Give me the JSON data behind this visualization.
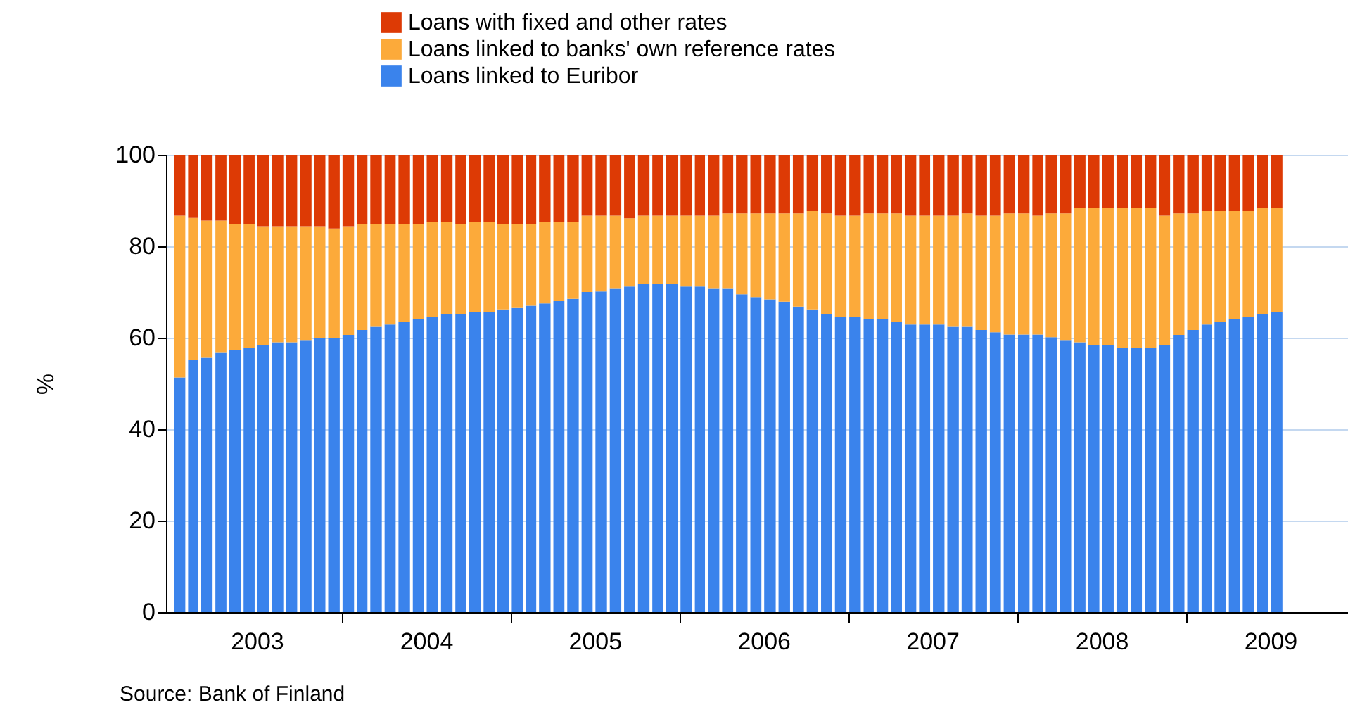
{
  "chart_data": {
    "type": "bar",
    "stacked": true,
    "ylabel": "%",
    "annotations": [
      "Source: Bank of Finland"
    ],
    "x": [
      "2003-01",
      "2003-02",
      "2003-03",
      "2003-04",
      "2003-05",
      "2003-06",
      "2003-07",
      "2003-08",
      "2003-09",
      "2003-10",
      "2003-11",
      "2003-12",
      "2004-01",
      "2004-02",
      "2004-03",
      "2004-04",
      "2004-05",
      "2004-06",
      "2004-07",
      "2004-08",
      "2004-09",
      "2004-10",
      "2004-11",
      "2004-12",
      "2005-01",
      "2005-02",
      "2005-03",
      "2005-04",
      "2005-05",
      "2005-06",
      "2005-07",
      "2005-08",
      "2005-09",
      "2005-10",
      "2005-11",
      "2005-12",
      "2006-01",
      "2006-02",
      "2006-03",
      "2006-04",
      "2006-05",
      "2006-06",
      "2006-07",
      "2006-08",
      "2006-09",
      "2006-10",
      "2006-11",
      "2006-12",
      "2007-01",
      "2007-02",
      "2007-03",
      "2007-04",
      "2007-05",
      "2007-06",
      "2007-07",
      "2007-08",
      "2007-09",
      "2007-10",
      "2007-11",
      "2007-12",
      "2008-01",
      "2008-02",
      "2008-03",
      "2008-04",
      "2008-05",
      "2008-06",
      "2008-07",
      "2008-08",
      "2008-09",
      "2008-10",
      "2008-11",
      "2008-12",
      "2009-01",
      "2009-02",
      "2009-03",
      "2009-04",
      "2009-05",
      "2009-06",
      "2009-07"
    ],
    "series": [
      {
        "name": "Loans linked to Euribor",
        "color": "#3a83ec",
        "values": [
          51.3,
          55.1,
          55.6,
          56.7,
          57.3,
          57.8,
          58.4,
          59.0,
          59.0,
          59.5,
          60.0,
          60.0,
          60.6,
          61.7,
          62.4,
          62.9,
          63.5,
          64.0,
          64.6,
          65.1,
          65.1,
          65.6,
          65.6,
          66.2,
          66.5,
          67.0,
          67.5,
          68.0,
          68.5,
          70.0,
          70.1,
          70.7,
          71.2,
          71.7,
          71.7,
          71.7,
          71.2,
          71.2,
          70.7,
          70.7,
          69.5,
          68.9,
          68.4,
          67.9,
          66.8,
          66.2,
          65.1,
          64.5,
          64.5,
          64.0,
          64.0,
          63.4,
          62.9,
          62.9,
          62.9,
          62.4,
          62.4,
          61.7,
          61.2,
          60.7,
          60.7,
          60.7,
          60.1,
          59.5,
          59.0,
          58.4,
          58.4,
          57.8,
          57.8,
          57.8,
          58.4,
          60.6,
          61.7,
          62.9,
          63.4,
          64.0,
          64.5,
          65.1,
          65.6
        ]
      },
      {
        "name": "Loans linked to banks' own reference rates",
        "color": "#fcaa3a",
        "values": [
          35.4,
          31.1,
          30.0,
          28.9,
          27.6,
          27.1,
          26.0,
          25.4,
          25.4,
          24.9,
          24.4,
          23.9,
          23.8,
          23.2,
          22.5,
          22.0,
          21.4,
          20.9,
          20.8,
          20.3,
          19.8,
          19.8,
          19.8,
          18.7,
          18.4,
          17.9,
          17.9,
          17.4,
          16.9,
          16.7,
          16.6,
          16.0,
          14.9,
          15.0,
          15.0,
          15.0,
          15.5,
          15.5,
          16.0,
          16.5,
          17.7,
          18.3,
          18.8,
          19.3,
          20.4,
          21.5,
          22.1,
          22.2,
          22.2,
          23.2,
          23.2,
          23.8,
          23.8,
          23.8,
          23.8,
          24.3,
          24.8,
          25.0,
          25.5,
          26.5,
          26.5,
          26.0,
          27.1,
          27.7,
          29.4,
          30.0,
          30.0,
          30.6,
          30.6,
          30.6,
          28.3,
          26.6,
          25.5,
          24.8,
          24.3,
          23.7,
          23.2,
          23.3,
          22.8
        ]
      },
      {
        "name": "Loans with fixed and other rates",
        "color": "#dd3a05",
        "values": [
          13.3,
          13.8,
          14.4,
          14.4,
          15.1,
          15.1,
          15.6,
          15.6,
          15.6,
          15.6,
          15.6,
          16.1,
          15.6,
          15.1,
          15.1,
          15.1,
          15.1,
          15.1,
          14.6,
          14.6,
          15.1,
          14.6,
          14.6,
          15.1,
          15.1,
          15.1,
          14.6,
          14.6,
          14.6,
          13.3,
          13.3,
          13.3,
          13.9,
          13.3,
          13.3,
          13.3,
          13.3,
          13.3,
          13.3,
          12.8,
          12.8,
          12.8,
          12.8,
          12.8,
          12.8,
          12.3,
          12.8,
          13.3,
          13.3,
          12.8,
          12.8,
          12.8,
          13.3,
          13.3,
          13.3,
          13.3,
          12.8,
          13.3,
          13.3,
          12.8,
          12.8,
          13.3,
          12.8,
          12.8,
          11.6,
          11.6,
          11.6,
          11.6,
          11.6,
          11.6,
          13.3,
          12.8,
          12.8,
          12.3,
          12.3,
          12.3,
          12.3,
          11.6,
          11.6
        ]
      }
    ],
    "xlim": [
      "2003-01",
      "2009-12"
    ],
    "xticks": [
      {
        "value": "2003-07",
        "label": "2003"
      },
      {
        "value": "2004-01",
        "label": null
      },
      {
        "value": "2004-07",
        "label": "2004"
      },
      {
        "value": "2005-01",
        "label": null
      },
      {
        "value": "2005-07",
        "label": "2005"
      },
      {
        "value": "2006-01",
        "label": null
      },
      {
        "value": "2006-07",
        "label": "2006"
      },
      {
        "value": "2007-01",
        "label": null
      },
      {
        "value": "2007-07",
        "label": "2007"
      },
      {
        "value": "2008-01",
        "label": null
      },
      {
        "value": "2008-07",
        "label": "2008"
      },
      {
        "value": "2009-01",
        "label": null
      },
      {
        "value": "2009-07",
        "label": "2009"
      }
    ],
    "ylim": [
      0,
      100
    ],
    "yticks": [
      0,
      20,
      40,
      60,
      80,
      100
    ],
    "grid": "y",
    "legend": "top"
  }
}
